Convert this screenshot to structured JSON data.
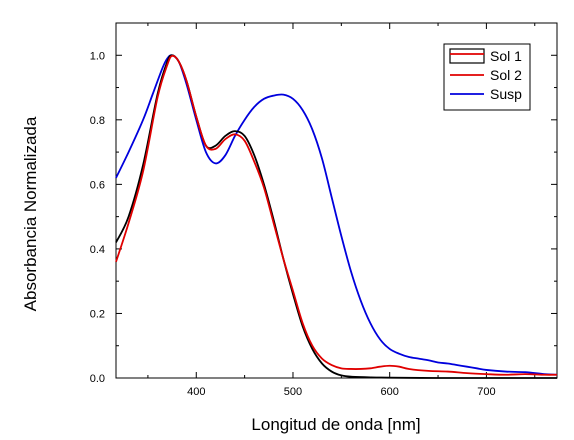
{
  "chart_data": {
    "type": "line",
    "title": "",
    "xlabel": "Longitud de onda [nm]",
    "ylabel": "Absorbancia Normalizada",
    "xlim": [
      317,
      773
    ],
    "ylim": [
      0.0,
      1.1
    ],
    "x_ticks": [
      400,
      500,
      600,
      700
    ],
    "x_tick_labels": [
      "400",
      "500",
      "600",
      "700"
    ],
    "y_ticks": [
      0.0,
      0.2,
      0.4,
      0.6,
      0.8,
      1.0
    ],
    "y_tick_labels": [
      "0.0",
      "0.2",
      "0.4",
      "0.6",
      "0.8",
      "1.0"
    ],
    "grid": false,
    "legend_position": "top-right",
    "series": [
      {
        "name": "Sol 1",
        "color": "#000000",
        "points": [
          [
            317,
            0.42
          ],
          [
            330,
            0.5
          ],
          [
            345,
            0.66
          ],
          [
            360,
            0.88
          ],
          [
            370,
            0.98
          ],
          [
            375,
            1.0
          ],
          [
            382,
            0.98
          ],
          [
            390,
            0.92
          ],
          [
            400,
            0.81
          ],
          [
            410,
            0.72
          ],
          [
            420,
            0.72
          ],
          [
            430,
            0.75
          ],
          [
            440,
            0.765
          ],
          [
            450,
            0.75
          ],
          [
            460,
            0.69
          ],
          [
            470,
            0.6
          ],
          [
            480,
            0.49
          ],
          [
            490,
            0.37
          ],
          [
            500,
            0.26
          ],
          [
            510,
            0.16
          ],
          [
            520,
            0.09
          ],
          [
            530,
            0.045
          ],
          [
            540,
            0.02
          ],
          [
            550,
            0.008
          ],
          [
            560,
            0.004
          ],
          [
            580,
            0.002
          ],
          [
            600,
            0.001
          ],
          [
            650,
            0.0
          ],
          [
            700,
            0.0
          ],
          [
            760,
            0.0
          ],
          [
            773,
            0.0
          ]
        ]
      },
      {
        "name": "Sol 2",
        "color": "#e00000",
        "points": [
          [
            317,
            0.36
          ],
          [
            330,
            0.48
          ],
          [
            345,
            0.64
          ],
          [
            360,
            0.87
          ],
          [
            370,
            0.97
          ],
          [
            375,
            0.998
          ],
          [
            382,
            0.98
          ],
          [
            390,
            0.92
          ],
          [
            400,
            0.81
          ],
          [
            410,
            0.72
          ],
          [
            420,
            0.71
          ],
          [
            430,
            0.74
          ],
          [
            440,
            0.755
          ],
          [
            450,
            0.735
          ],
          [
            460,
            0.67
          ],
          [
            470,
            0.59
          ],
          [
            480,
            0.48
          ],
          [
            490,
            0.37
          ],
          [
            500,
            0.27
          ],
          [
            510,
            0.17
          ],
          [
            520,
            0.1
          ],
          [
            530,
            0.06
          ],
          [
            540,
            0.04
          ],
          [
            550,
            0.03
          ],
          [
            560,
            0.028
          ],
          [
            570,
            0.028
          ],
          [
            580,
            0.03
          ],
          [
            590,
            0.035
          ],
          [
            600,
            0.038
          ],
          [
            610,
            0.035
          ],
          [
            620,
            0.028
          ],
          [
            640,
            0.022
          ],
          [
            660,
            0.02
          ],
          [
            680,
            0.015
          ],
          [
            700,
            0.012
          ],
          [
            720,
            0.01
          ],
          [
            740,
            0.012
          ],
          [
            760,
            0.01
          ],
          [
            773,
            0.01
          ]
        ]
      },
      {
        "name": "Susp",
        "color": "#0000dd",
        "points": [
          [
            317,
            0.62
          ],
          [
            330,
            0.7
          ],
          [
            345,
            0.8
          ],
          [
            355,
            0.88
          ],
          [
            365,
            0.96
          ],
          [
            370,
            0.99
          ],
          [
            375,
            1.0
          ],
          [
            382,
            0.98
          ],
          [
            390,
            0.91
          ],
          [
            400,
            0.8
          ],
          [
            410,
            0.7
          ],
          [
            420,
            0.665
          ],
          [
            430,
            0.69
          ],
          [
            440,
            0.75
          ],
          [
            450,
            0.8
          ],
          [
            460,
            0.84
          ],
          [
            470,
            0.865
          ],
          [
            480,
            0.875
          ],
          [
            490,
            0.878
          ],
          [
            500,
            0.865
          ],
          [
            510,
            0.83
          ],
          [
            520,
            0.77
          ],
          [
            530,
            0.68
          ],
          [
            540,
            0.56
          ],
          [
            550,
            0.44
          ],
          [
            560,
            0.33
          ],
          [
            570,
            0.24
          ],
          [
            580,
            0.17
          ],
          [
            590,
            0.12
          ],
          [
            600,
            0.09
          ],
          [
            610,
            0.075
          ],
          [
            620,
            0.065
          ],
          [
            630,
            0.06
          ],
          [
            640,
            0.055
          ],
          [
            650,
            0.048
          ],
          [
            660,
            0.045
          ],
          [
            670,
            0.04
          ],
          [
            680,
            0.035
          ],
          [
            690,
            0.03
          ],
          [
            700,
            0.025
          ],
          [
            720,
            0.02
          ],
          [
            740,
            0.018
          ],
          [
            760,
            0.012
          ],
          [
            773,
            0.01
          ]
        ]
      }
    ]
  }
}
